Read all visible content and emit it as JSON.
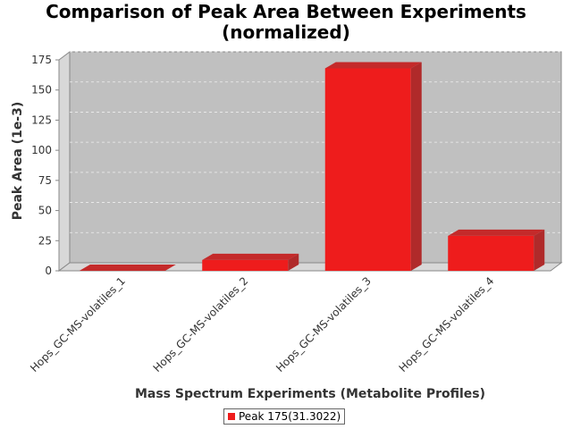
{
  "chart_data": {
    "type": "bar",
    "title_line1": "Comparison of Peak Area Between Experiments",
    "title_line2": "(normalized)",
    "xlabel": "Mass Spectrum Experiments (Metabolite Profiles)",
    "ylabel": "Peak Area (1e-3)",
    "categories": [
      "Hops_GC-MS-volatiles_1",
      "Hops_GC-MS-volatiles_2",
      "Hops_GC-MS-volatiles_3",
      "Hops_GC-MS-volatiles_4"
    ],
    "series": [
      {
        "name": "Peak 175(31.3022)",
        "values": [
          0,
          9,
          168,
          29
        ]
      }
    ],
    "ylim": [
      0,
      175
    ],
    "yticks": [
      "0",
      "25",
      "50",
      "75",
      "100",
      "125",
      "150",
      "175"
    ],
    "legend_position": "bottom-center",
    "grid": true,
    "colors": {
      "bar": "#ee1c1c",
      "bar_top": "#c42a2a",
      "bar_side": "#b02a2a",
      "plot_bg": "#c0c0c0",
      "wall": "#d8d8d8"
    }
  }
}
